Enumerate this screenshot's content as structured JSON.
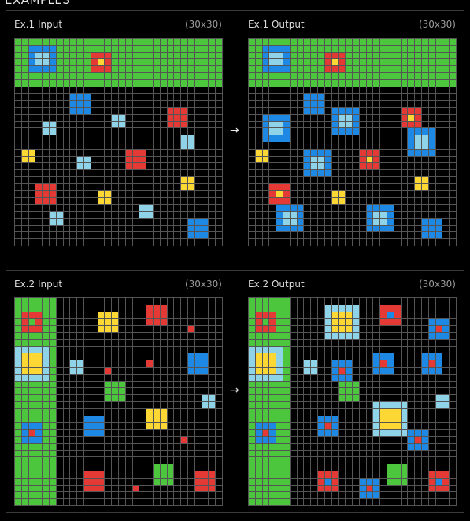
{
  "header": {
    "title": "EXAMPLES"
  },
  "arrow_glyph": "→",
  "palette": {
    "0": "#000000",
    "1": "#1E88E5",
    "2": "#E53935",
    "3": "#4CC63C",
    "4": "#FDD835",
    "8": "#8FD3E8"
  },
  "examples": [
    {
      "input": {
        "label": "Ex.1 Input",
        "size": "(30x30)"
      },
      "output": {
        "label": "Ex.1 Output",
        "size": "(30x30)"
      }
    },
    {
      "input": {
        "label": "Ex.2 Input",
        "size": "(30x30)"
      },
      "output": {
        "label": "Ex.2 Output",
        "size": "(30x30)"
      }
    }
  ],
  "grids": {
    "ex1_input": {
      "fill": [
        [
          0,
          0,
          29,
          6,
          3
        ],
        [
          2,
          1,
          5,
          4,
          1
        ],
        [
          3,
          2,
          4,
          3,
          8
        ],
        [
          11,
          2,
          13,
          4,
          2
        ],
        [
          12,
          3,
          12,
          3,
          4
        ],
        [
          8,
          8,
          10,
          10,
          1
        ],
        [
          22,
          10,
          24,
          12,
          2
        ],
        [
          14,
          11,
          15,
          12,
          8
        ],
        [
          4,
          12,
          5,
          13,
          8
        ],
        [
          24,
          14,
          25,
          15,
          8
        ],
        [
          1,
          16,
          2,
          17,
          4
        ],
        [
          16,
          16,
          18,
          18,
          2
        ],
        [
          9,
          17,
          10,
          18,
          8
        ],
        [
          24,
          20,
          25,
          21,
          4
        ],
        [
          3,
          21,
          5,
          23,
          2
        ],
        [
          12,
          22,
          13,
          23,
          4
        ],
        [
          18,
          24,
          19,
          25,
          8
        ],
        [
          5,
          25,
          6,
          26,
          8
        ],
        [
          25,
          26,
          27,
          28,
          1
        ]
      ],
      "cells": []
    },
    "ex1_output": {
      "fill": [
        [
          0,
          0,
          29,
          6,
          3
        ],
        [
          2,
          1,
          5,
          4,
          1
        ],
        [
          3,
          2,
          4,
          3,
          8
        ],
        [
          11,
          2,
          13,
          4,
          2
        ],
        [
          12,
          3,
          12,
          3,
          4
        ],
        [
          8,
          8,
          10,
          10,
          1
        ],
        [
          12,
          10,
          15,
          13,
          1
        ],
        [
          13,
          11,
          14,
          12,
          8
        ],
        [
          2,
          11,
          5,
          14,
          1
        ],
        [
          3,
          12,
          4,
          13,
          8
        ],
        [
          22,
          10,
          24,
          12,
          2
        ],
        [
          23,
          11,
          23,
          11,
          4
        ],
        [
          23,
          13,
          26,
          16,
          1
        ],
        [
          24,
          14,
          25,
          15,
          8
        ],
        [
          1,
          16,
          2,
          17,
          4
        ],
        [
          8,
          16,
          11,
          19,
          1
        ],
        [
          9,
          17,
          10,
          18,
          8
        ],
        [
          16,
          16,
          18,
          18,
          2
        ],
        [
          17,
          17,
          17,
          17,
          4
        ],
        [
          24,
          20,
          25,
          21,
          4
        ],
        [
          3,
          21,
          5,
          23,
          2
        ],
        [
          4,
          22,
          4,
          22,
          4
        ],
        [
          12,
          22,
          13,
          23,
          4
        ],
        [
          17,
          24,
          20,
          27,
          1
        ],
        [
          18,
          25,
          19,
          26,
          8
        ],
        [
          4,
          24,
          7,
          27,
          1
        ],
        [
          5,
          25,
          6,
          26,
          8
        ],
        [
          25,
          26,
          27,
          28,
          1
        ]
      ],
      "cells": []
    },
    "ex2_input": {
      "fill": [
        [
          0,
          0,
          5,
          29,
          3
        ],
        [
          1,
          2,
          3,
          4,
          2
        ],
        [
          2,
          3,
          2,
          3,
          3
        ],
        [
          0,
          7,
          4,
          11,
          8
        ],
        [
          1,
          8,
          3,
          10,
          4
        ],
        [
          1,
          18,
          3,
          20,
          1
        ],
        [
          2,
          19,
          2,
          19,
          2
        ],
        [
          12,
          2,
          14,
          4,
          4
        ],
        [
          19,
          1,
          21,
          3,
          2
        ],
        [
          25,
          4,
          25,
          4,
          2
        ],
        [
          8,
          9,
          9,
          10,
          8
        ],
        [
          13,
          10,
          13,
          10,
          2
        ],
        [
          19,
          9,
          19,
          9,
          2
        ],
        [
          25,
          8,
          27,
          10,
          1
        ],
        [
          13,
          12,
          15,
          14,
          3
        ],
        [
          27,
          14,
          28,
          15,
          8
        ],
        [
          19,
          16,
          21,
          18,
          4
        ],
        [
          10,
          17,
          12,
          19,
          1
        ],
        [
          24,
          20,
          24,
          20,
          2
        ],
        [
          10,
          25,
          12,
          27,
          2
        ],
        [
          20,
          24,
          22,
          26,
          3
        ],
        [
          17,
          27,
          17,
          27,
          2
        ],
        [
          26,
          25,
          28,
          27,
          2
        ]
      ],
      "cells": []
    },
    "ex2_output": {
      "fill": [
        [
          0,
          0,
          5,
          29,
          3
        ],
        [
          1,
          2,
          3,
          4,
          2
        ],
        [
          2,
          3,
          2,
          3,
          3
        ],
        [
          0,
          7,
          4,
          11,
          8
        ],
        [
          1,
          8,
          3,
          10,
          4
        ],
        [
          1,
          18,
          3,
          20,
          1
        ],
        [
          2,
          19,
          2,
          19,
          2
        ],
        [
          11,
          1,
          15,
          5,
          8
        ],
        [
          12,
          2,
          14,
          4,
          4
        ],
        [
          19,
          1,
          21,
          3,
          2
        ],
        [
          20,
          2,
          20,
          2,
          1
        ],
        [
          26,
          3,
          28,
          5,
          1
        ],
        [
          27,
          4,
          27,
          4,
          2
        ],
        [
          8,
          9,
          9,
          10,
          8
        ],
        [
          12,
          9,
          14,
          11,
          1
        ],
        [
          13,
          10,
          13,
          10,
          2
        ],
        [
          18,
          8,
          20,
          10,
          1
        ],
        [
          19,
          9,
          19,
          9,
          2
        ],
        [
          25,
          8,
          27,
          10,
          1
        ],
        [
          26,
          9,
          26,
          9,
          2
        ],
        [
          13,
          12,
          15,
          14,
          3
        ],
        [
          27,
          14,
          28,
          15,
          8
        ],
        [
          18,
          15,
          22,
          19,
          8
        ],
        [
          19,
          16,
          21,
          18,
          4
        ],
        [
          10,
          17,
          12,
          19,
          1
        ],
        [
          11,
          18,
          11,
          18,
          2
        ],
        [
          23,
          19,
          25,
          21,
          1
        ],
        [
          24,
          20,
          24,
          20,
          2
        ],
        [
          10,
          25,
          12,
          27,
          2
        ],
        [
          11,
          26,
          11,
          26,
          1
        ],
        [
          20,
          24,
          22,
          26,
          3
        ],
        [
          16,
          26,
          18,
          28,
          1
        ],
        [
          17,
          27,
          17,
          27,
          2
        ],
        [
          26,
          25,
          28,
          27,
          2
        ],
        [
          27,
          26,
          27,
          26,
          1
        ]
      ],
      "cells": []
    }
  }
}
